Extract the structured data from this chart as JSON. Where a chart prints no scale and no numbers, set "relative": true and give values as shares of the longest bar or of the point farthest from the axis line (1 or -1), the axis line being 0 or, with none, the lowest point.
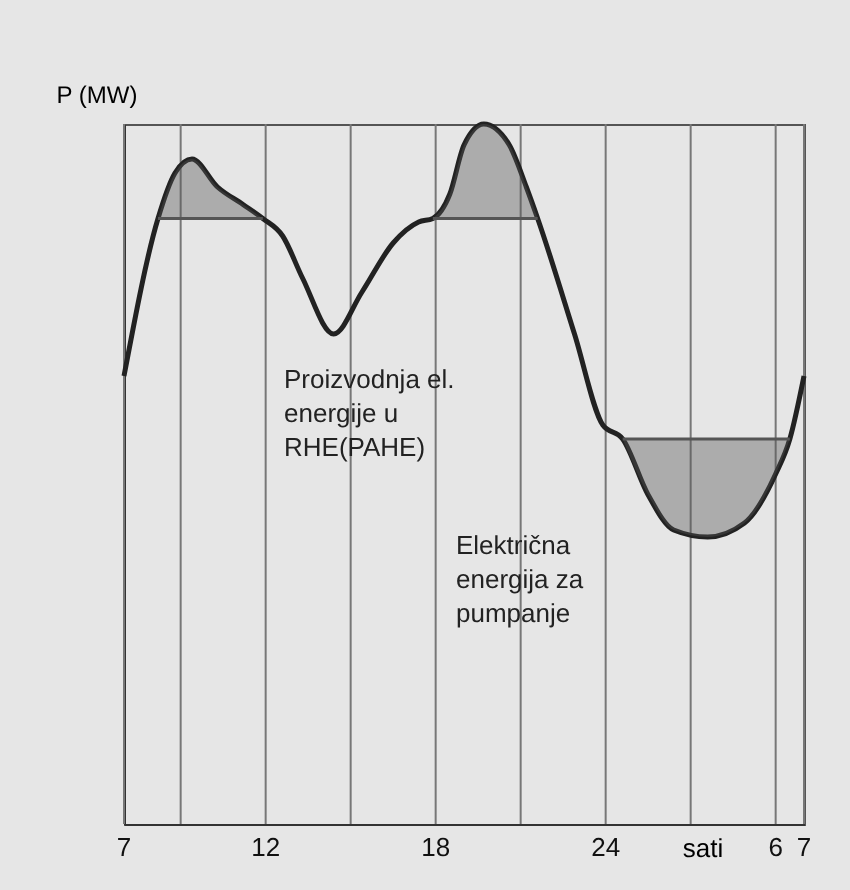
{
  "chart_data": {
    "type": "line",
    "relative": true,
    "ylabel": "P (MW)",
    "xlabel": "sati",
    "xlim": [
      "--01-01T07:00",
      "--01-02T07:00"
    ],
    "xticks": [
      {
        "value": "--01-01T07:00",
        "label": "7"
      },
      {
        "value": "--01-01T09:00",
        "label": null
      },
      {
        "value": "--01-01T12:00",
        "label": "12"
      },
      {
        "value": "--01-01T15:00",
        "label": null
      },
      {
        "value": "--01-01T18:00",
        "label": "18"
      },
      {
        "value": "--01-01T21:00",
        "label": null
      },
      {
        "value": "--01-02T00:00",
        "label": "24"
      },
      {
        "value": "--01-02T03:00",
        "label": null
      },
      {
        "value": "--01-02T06:00",
        "label": "6"
      },
      {
        "value": "--01-02T07:00",
        "label": "7"
      }
    ],
    "grid": "x",
    "marker": "none",
    "line_style": "solid",
    "series": [
      {
        "color": "#222222",
        "x": [
          "--01-01T07:00",
          "--01-01T08:12",
          "--01-01T08:48",
          "--01-01T09:24",
          "--01-01T10:18",
          "--01-01T11:12",
          "--01-01T11:54",
          "--01-01T12:36",
          "--01-01T13:18",
          "--01-01T14:24",
          "--01-01T15:24",
          "--01-01T16:30",
          "--01-01T17:24",
          "--01-01T17:54",
          "--01-01T18:30",
          "--01-01T19:00",
          "--01-01T19:42",
          "--01-01T20:36",
          "--01-01T21:12",
          "--01-01T21:36",
          "--01-01T22:54",
          "--01-01T23:54",
          "--01-02T00:36",
          "--01-02T01:30",
          "--01-02T02:24",
          "--01-02T03:36",
          "--01-02T04:54",
          "--01-02T06:00",
          "--01-02T06:30",
          "--01-02T07:00"
        ],
        "values": [
          0.64,
          0.865,
          0.93,
          0.95,
          0.91,
          0.885,
          0.865,
          0.84,
          0.78,
          0.7,
          0.76,
          0.83,
          0.86,
          0.865,
          0.9,
          0.97,
          1,
          0.97,
          0.91,
          0.865,
          0.7,
          0.57,
          0.55,
          0.47,
          0.42,
          0.41,
          0.43,
          0.5,
          0.55,
          0.64
        ]
      },
      {
        "color": "#555555",
        "x": [
          "--01-01T08:12",
          "--01-01T08:48",
          "--01-01T09:24",
          "--01-01T10:18",
          "--01-01T11:12",
          "--01-01T11:54"
        ],
        "values": [
          0.865,
          0.865,
          0.865,
          0.865,
          0.865,
          0.865
        ],
        "lower": [
          0.865,
          0.865,
          0.865,
          0.865,
          0.865,
          0.865
        ],
        "upper": [
          0.865,
          0.93,
          0.95,
          0.91,
          0.885,
          0.865
        ]
      },
      {
        "color": "#555555",
        "x": [
          "--01-01T17:54",
          "--01-01T18:30",
          "--01-01T19:00",
          "--01-01T19:42",
          "--01-01T20:36",
          "--01-01T21:12",
          "--01-01T21:36"
        ],
        "values": [
          0.865,
          0.865,
          0.865,
          0.865,
          0.865,
          0.865,
          0.865
        ],
        "lower": [
          0.865,
          0.865,
          0.865,
          0.865,
          0.865,
          0.865,
          0.865
        ],
        "upper": [
          0.865,
          0.9,
          0.97,
          1,
          0.97,
          0.91,
          0.865
        ]
      },
      {
        "color": "#555555",
        "x": [
          "--01-02T00:36",
          "--01-02T01:30",
          "--01-02T02:24",
          "--01-02T03:36",
          "--01-02T04:54",
          "--01-02T06:00",
          "--01-02T06:30"
        ],
        "values": [
          0.55,
          0.55,
          0.55,
          0.55,
          0.55,
          0.55,
          0.55
        ],
        "lower": [
          0.55,
          0.47,
          0.42,
          0.41,
          0.43,
          0.5,
          0.55
        ],
        "upper": [
          0.55,
          0.55,
          0.55,
          0.55,
          0.55,
          0.55,
          0.55
        ]
      }
    ],
    "annotations": [
      "Proizvodnja el.\nenergije u\nRHE(PAHE)",
      "Električna\nenergija za\npumpanje"
    ]
  }
}
